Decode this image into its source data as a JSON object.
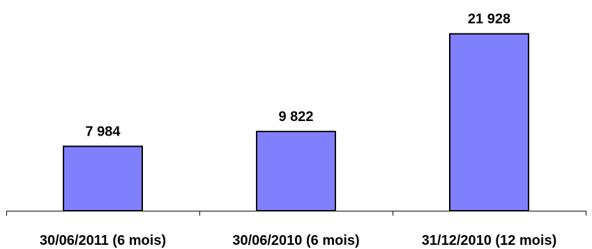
{
  "chart_data": {
    "type": "bar",
    "categories": [
      "30/06/2011 (6 mois)",
      "30/06/2010 (6 mois)",
      "31/12/2010 (12 mois)"
    ],
    "values": [
      7984,
      9822,
      21928
    ],
    "value_labels": [
      "7 984",
      "9 822",
      "21 928"
    ],
    "title": "",
    "xlabel": "",
    "ylabel": "",
    "ylim": [
      0,
      25000
    ],
    "grid": false,
    "legend": "none",
    "bar_color": "#8080ff",
    "bar_outline_color": "#000000"
  }
}
